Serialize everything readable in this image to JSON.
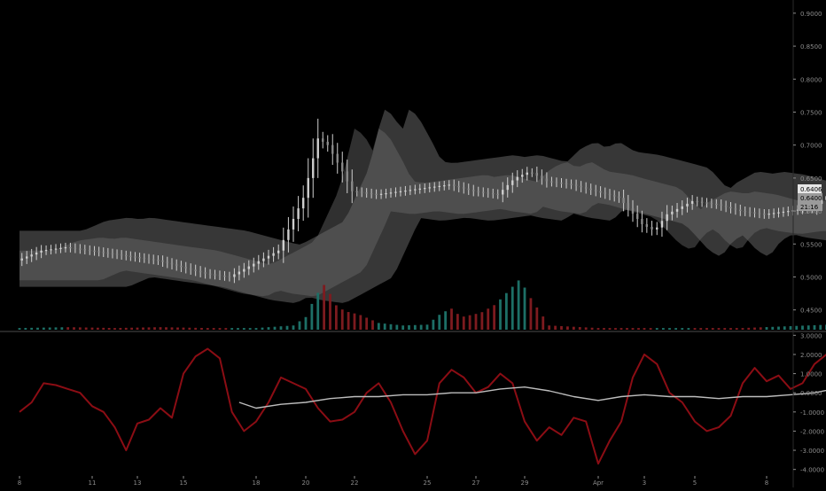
{
  "chart_data": {
    "type": "line",
    "x_tick_labels": [
      "8",
      "11",
      "13",
      "15",
      "18",
      "20",
      "22",
      "25",
      "27",
      "29",
      "Apr",
      "3",
      "5",
      "8"
    ],
    "price_axis": {
      "ylim": [
        0.42,
        0.92
      ],
      "tick_labels": [
        "0.9000",
        "0.8500",
        "0.8000",
        "0.7500",
        "0.7000",
        "0.6500",
        "0.6000",
        "0.5500",
        "0.5000",
        "0.4500"
      ],
      "tick_values": [
        0.9,
        0.85,
        0.8,
        0.75,
        0.7,
        0.65,
        0.6,
        0.55,
        0.5,
        0.45
      ],
      "price_tags": [
        {
          "label": "0.6406",
          "value": 0.6406
        },
        {
          "label": "0.6400",
          "value": 0.64
        },
        {
          "label": "21:16",
          "value": 0.631
        }
      ]
    },
    "oscillator_axis": {
      "ylim": [
        -4.2,
        3.2
      ],
      "tick_labels": [
        "3.0000",
        "2.0000",
        "1.0000",
        "0.0000",
        "-1.0000",
        "-2.0000",
        "-3.0000",
        "-4.0000"
      ],
      "tick_values": [
        3,
        2,
        1,
        0,
        -1,
        -2,
        -3,
        -4
      ]
    },
    "price_series": [
      [
        0,
        0.525
      ],
      [
        1,
        0.54
      ],
      [
        2,
        0.545
      ],
      [
        3,
        0.54
      ],
      [
        4,
        0.535
      ],
      [
        5,
        0.53
      ],
      [
        6,
        0.525
      ],
      [
        7,
        0.515
      ],
      [
        8,
        0.505
      ],
      [
        9,
        0.5
      ],
      [
        10,
        0.52
      ],
      [
        11,
        0.54
      ],
      [
        12,
        0.62
      ],
      [
        12.6,
        0.71
      ],
      [
        13,
        0.7
      ],
      [
        13.6,
        0.66
      ],
      [
        14,
        0.63
      ],
      [
        15,
        0.625
      ],
      [
        16,
        0.63
      ],
      [
        17,
        0.635
      ],
      [
        18,
        0.64
      ],
      [
        19,
        0.63
      ],
      [
        20,
        0.625
      ],
      [
        20.7,
        0.65
      ],
      [
        21.3,
        0.66
      ],
      [
        22,
        0.645
      ],
      [
        23,
        0.64
      ],
      [
        24,
        0.63
      ],
      [
        25,
        0.62
      ],
      [
        26,
        0.58
      ],
      [
        26.5,
        0.57
      ],
      [
        27,
        0.595
      ],
      [
        28,
        0.615
      ],
      [
        29,
        0.61
      ],
      [
        30,
        0.6
      ],
      [
        31,
        0.595
      ],
      [
        32,
        0.6
      ],
      [
        33,
        0.605
      ],
      [
        34.2,
        0.64
      ]
    ],
    "volume_series": [
      [
        0,
        0.02
      ],
      [
        2,
        0.03
      ],
      [
        4,
        0.02
      ],
      [
        6,
        0.03
      ],
      [
        8,
        0.02
      ],
      [
        10,
        0.02
      ],
      [
        11.5,
        0.05
      ],
      [
        12,
        0.15
      ],
      [
        12.4,
        0.4
      ],
      [
        12.8,
        0.55
      ],
      [
        13.2,
        0.3
      ],
      [
        13.6,
        0.22
      ],
      [
        14.2,
        0.18
      ],
      [
        15,
        0.08
      ],
      [
        16,
        0.05
      ],
      [
        17,
        0.06
      ],
      [
        17.6,
        0.2
      ],
      [
        18,
        0.25
      ],
      [
        18.4,
        0.15
      ],
      [
        19.2,
        0.2
      ],
      [
        19.8,
        0.3
      ],
      [
        20.3,
        0.45
      ],
      [
        20.8,
        0.6
      ],
      [
        21.3,
        0.35
      ],
      [
        22,
        0.05
      ],
      [
        24,
        0.02
      ],
      [
        26,
        0.02
      ],
      [
        28,
        0.02
      ],
      [
        30,
        0.02
      ],
      [
        33.6,
        0.06
      ],
      [
        34.2,
        0.1
      ]
    ],
    "series": [
      {
        "values": [
          [
            0,
            -1.0
          ],
          [
            0.5,
            -0.5
          ],
          [
            1,
            0.5
          ],
          [
            1.5,
            0.4
          ],
          [
            2,
            0.2
          ],
          [
            2.5,
            0.0
          ],
          [
            3,
            -0.7
          ],
          [
            3.5,
            -1.0
          ],
          [
            4,
            -1.8
          ],
          [
            4.5,
            -3.0
          ],
          [
            5,
            -1.6
          ],
          [
            5.5,
            -1.4
          ],
          [
            6,
            -0.8
          ],
          [
            6.5,
            -1.3
          ],
          [
            7,
            1.0
          ],
          [
            7.5,
            1.9
          ],
          [
            8,
            2.3
          ],
          [
            8.5,
            1.8
          ],
          [
            9,
            -1.0
          ],
          [
            9.5,
            -2.0
          ],
          [
            10,
            -1.5
          ],
          [
            10.5,
            -0.5
          ],
          [
            11,
            0.8
          ],
          [
            11.5,
            0.5
          ],
          [
            12,
            0.2
          ],
          [
            12.5,
            -0.8
          ],
          [
            13,
            -1.5
          ],
          [
            13.5,
            -1.4
          ],
          [
            14,
            -1.0
          ],
          [
            14.5,
            0.0
          ],
          [
            15,
            0.5
          ],
          [
            15.5,
            -0.5
          ],
          [
            16,
            -2.0
          ],
          [
            16.5,
            -3.2
          ],
          [
            17,
            -2.5
          ],
          [
            17.5,
            0.5
          ],
          [
            18,
            1.2
          ],
          [
            18.5,
            0.8
          ],
          [
            19,
            0.0
          ],
          [
            19.5,
            0.3
          ],
          [
            20,
            1.0
          ],
          [
            20.5,
            0.5
          ],
          [
            21,
            -1.5
          ],
          [
            21.5,
            -2.5
          ],
          [
            22,
            -1.8
          ],
          [
            22.5,
            -2.2
          ],
          [
            23,
            -1.3
          ],
          [
            23.5,
            -1.5
          ],
          [
            24,
            -3.7
          ],
          [
            24.5,
            -2.5
          ],
          [
            25,
            -1.5
          ],
          [
            25.5,
            0.8
          ],
          [
            26,
            2.0
          ],
          [
            26.5,
            1.5
          ],
          [
            27,
            0.0
          ],
          [
            27.5,
            -0.5
          ],
          [
            28,
            -1.5
          ],
          [
            28.5,
            -2.0
          ],
          [
            29,
            -1.8
          ],
          [
            29.5,
            -1.2
          ],
          [
            30,
            0.5
          ],
          [
            30.5,
            1.3
          ],
          [
            31,
            0.6
          ],
          [
            31.5,
            0.9
          ],
          [
            32,
            0.2
          ],
          [
            32.5,
            0.5
          ],
          [
            33,
            1.5
          ],
          [
            33.5,
            2.0
          ],
          [
            34.2,
            2.8
          ]
        ]
      },
      {
        "values": [
          [
            9.3,
            -0.5
          ],
          [
            10,
            -0.8
          ],
          [
            11,
            -0.6
          ],
          [
            12,
            -0.5
          ],
          [
            13,
            -0.3
          ],
          [
            14,
            -0.2
          ],
          [
            15,
            -0.2
          ],
          [
            16,
            -0.1
          ],
          [
            17,
            -0.1
          ],
          [
            18,
            0.0
          ],
          [
            19,
            0.0
          ],
          [
            20,
            0.2
          ],
          [
            21,
            0.3
          ],
          [
            22,
            0.1
          ],
          [
            23,
            -0.2
          ],
          [
            24,
            -0.4
          ],
          [
            25,
            -0.2
          ],
          [
            26,
            -0.1
          ],
          [
            27,
            -0.2
          ],
          [
            28,
            -0.2
          ],
          [
            29,
            -0.3
          ],
          [
            30,
            -0.2
          ],
          [
            31,
            -0.2
          ],
          [
            32,
            -0.1
          ],
          [
            33,
            0.0
          ],
          [
            34.2,
            0.3
          ]
        ]
      }
    ],
    "grid": false,
    "colors": {
      "background": "#000000",
      "oscillator": "#8b0d14",
      "signal": "#bdbdbd",
      "volume_up": "#1d6f66",
      "volume_down": "#7d1b1f",
      "candle": "#cfcfcf",
      "cloud": "#4a4a4a",
      "cloud_light": "#6a6a6a",
      "axis_text": "#8c8c8c",
      "divider": "#4d4d4d",
      "price_tag": "#d8d8d8"
    }
  }
}
